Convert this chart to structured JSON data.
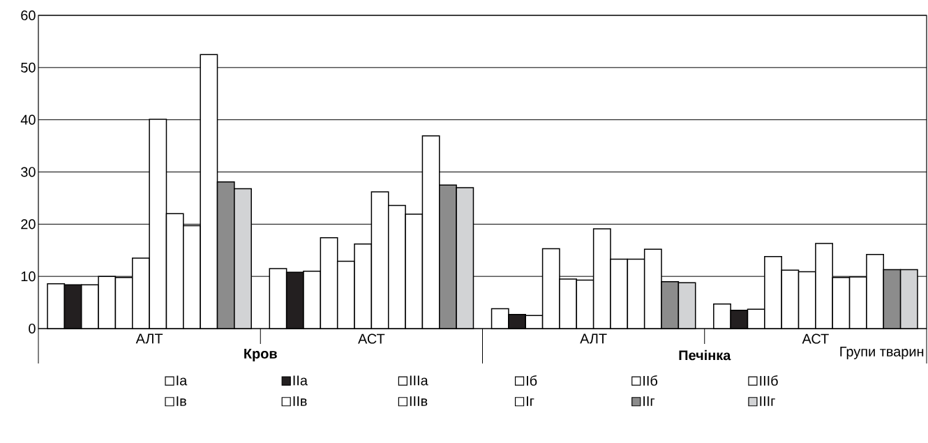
{
  "chart_data": {
    "type": "bar",
    "xlabel": "Групи тварин",
    "annotations": [
      "Кров",
      "Печінка"
    ],
    "categories": [
      "АЛТ",
      "АСТ",
      "АЛТ",
      "АСТ"
    ],
    "ylim": [
      0,
      60
    ],
    "yticks": [
      0,
      10,
      20,
      30,
      40,
      50,
      60
    ],
    "grid": "y",
    "legend": "bottom",
    "series": [
      {
        "name": "Iа",
        "color": "#ffffff",
        "values": [
          8.6,
          11.5,
          3.8,
          4.7
        ]
      },
      {
        "name": "IIа",
        "color": "#231f20",
        "values": [
          8.4,
          10.8,
          2.7,
          3.5
        ]
      },
      {
        "name": "IIIа",
        "color": "#ffffff",
        "values": [
          8.4,
          11.0,
          2.5,
          3.7
        ]
      },
      {
        "name": "Iб",
        "color": "#ffffff",
        "values": [
          10.0,
          17.4,
          15.3,
          13.8
        ]
      },
      {
        "name": "IIб",
        "color": "#ffffff",
        "values": [
          9.8,
          12.9,
          9.5,
          11.2
        ]
      },
      {
        "name": "IIIб",
        "color": "#ffffff",
        "values": [
          13.5,
          16.2,
          9.3,
          10.9
        ]
      },
      {
        "name": "Iв",
        "color": "#ffffff",
        "values": [
          40.1,
          26.2,
          19.1,
          16.3
        ]
      },
      {
        "name": "IIв",
        "color": "#ffffff",
        "values": [
          22.0,
          23.6,
          13.3,
          9.8
        ]
      },
      {
        "name": "IIIв",
        "color": "#ffffff",
        "values": [
          19.7,
          21.9,
          13.3,
          9.9
        ]
      },
      {
        "name": "Iг",
        "color": "#ffffff",
        "values": [
          52.5,
          36.9,
          15.2,
          14.2
        ]
      },
      {
        "name": "IIг",
        "color": "#8c8c8c",
        "values": [
          28.1,
          27.5,
          9.0,
          11.3
        ]
      },
      {
        "name": "IIIг",
        "color": "#d2d3d5",
        "values": [
          26.8,
          27.0,
          8.8,
          11.3
        ]
      }
    ]
  }
}
